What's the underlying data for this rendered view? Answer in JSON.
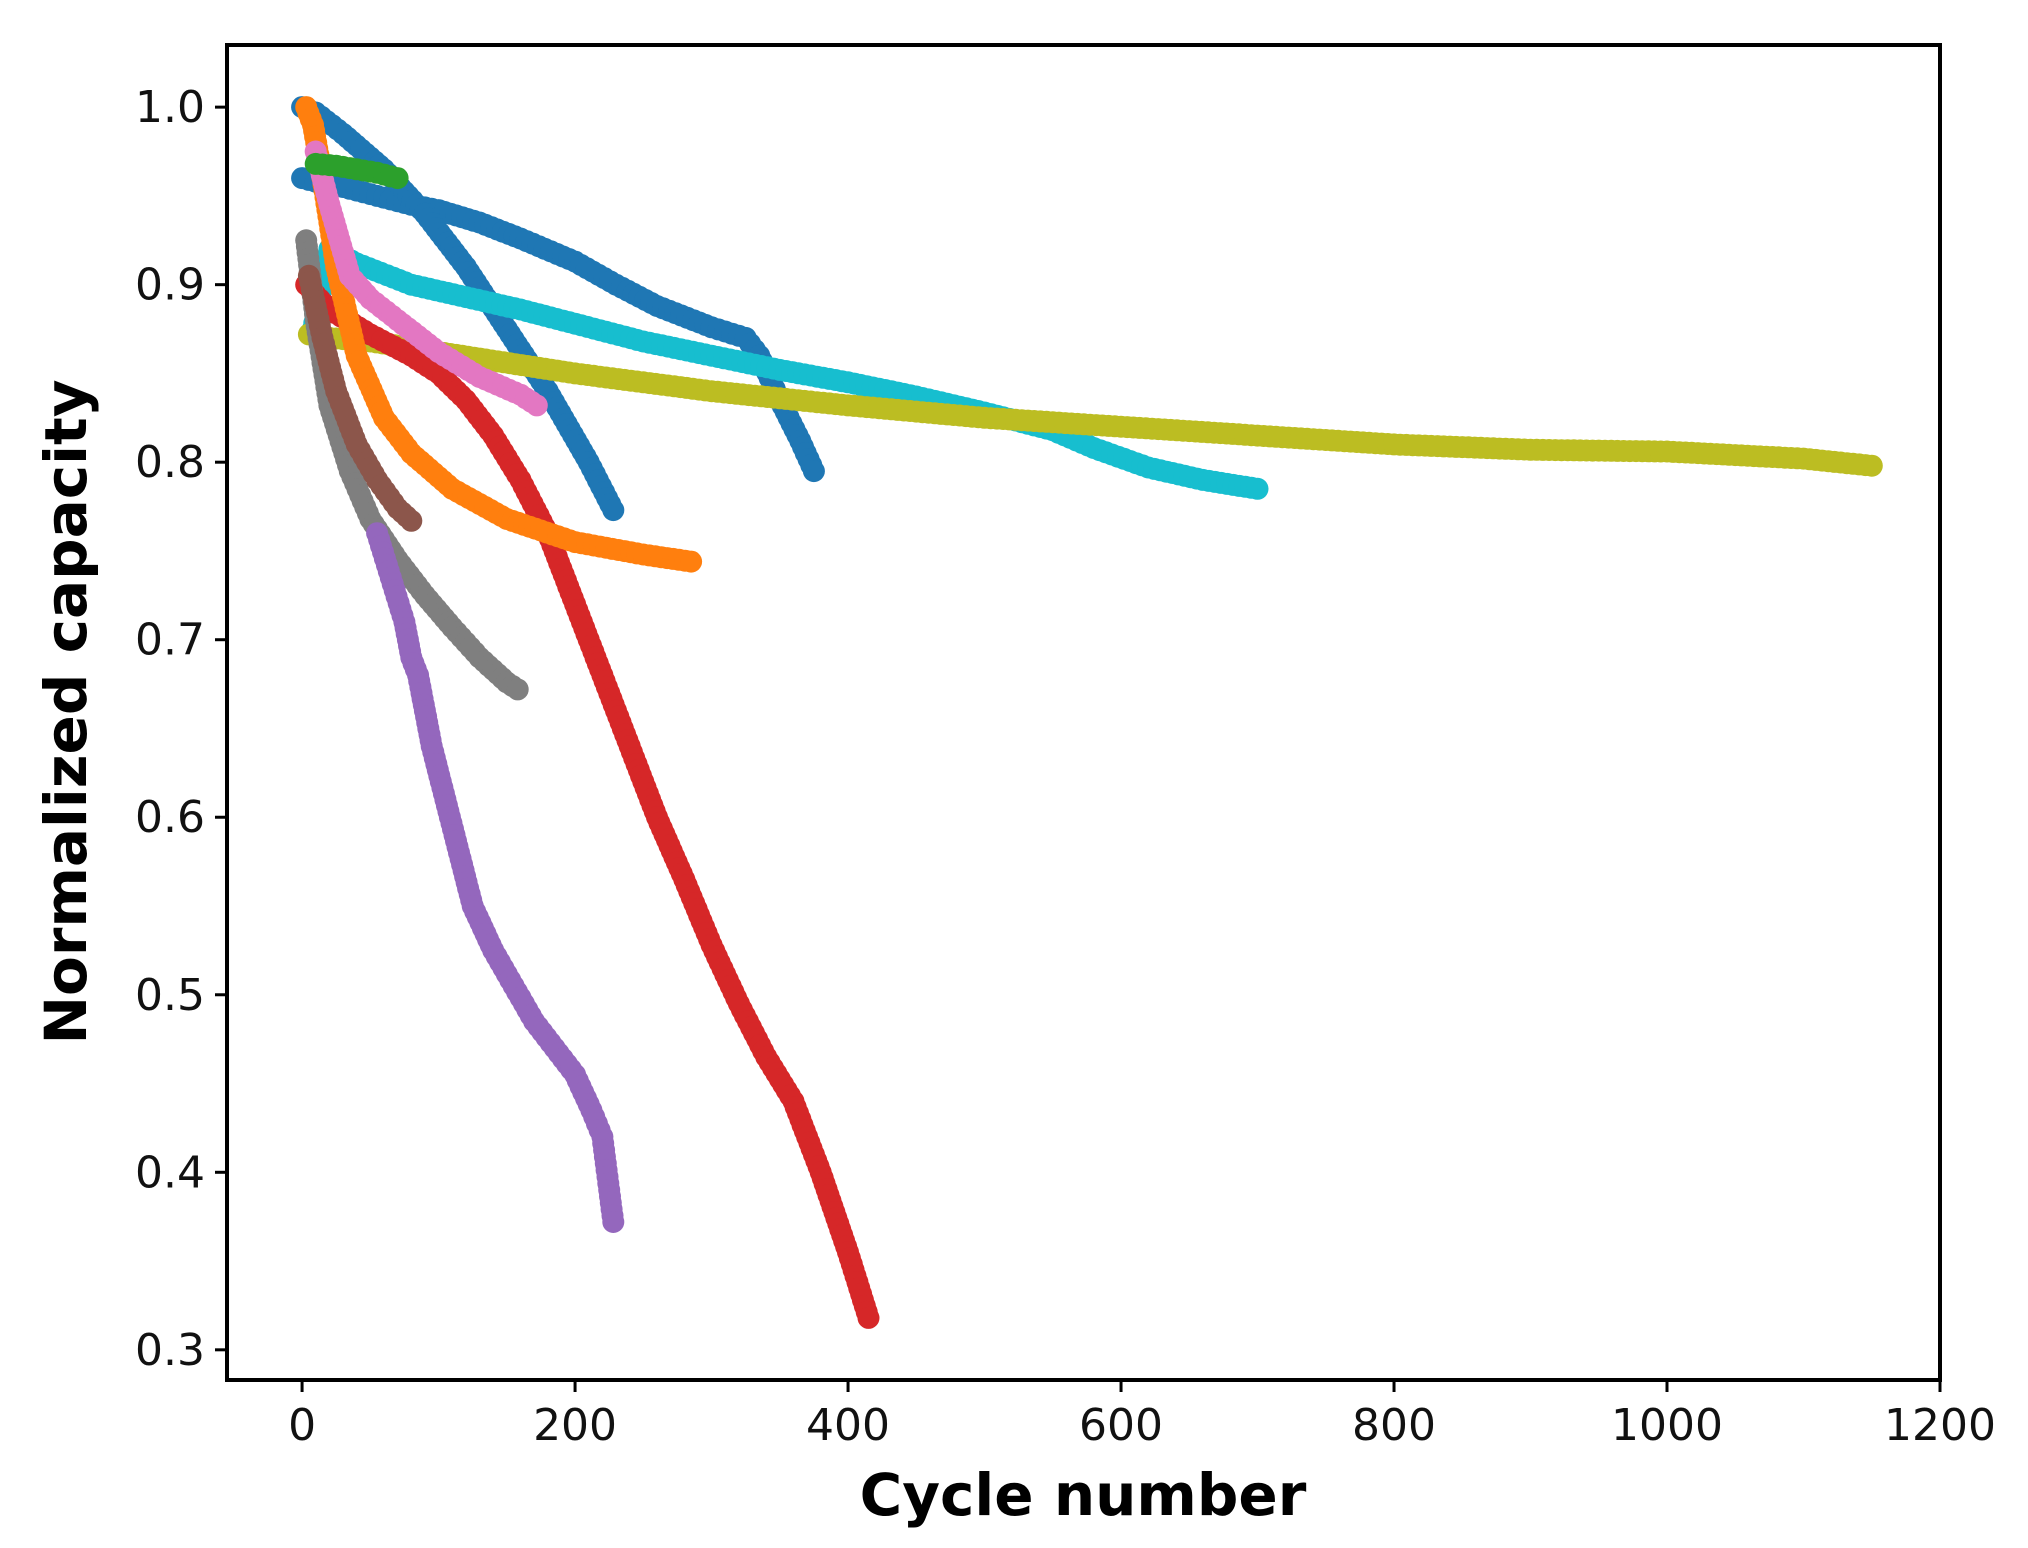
{
  "chart_data": {
    "type": "scatter",
    "title": "",
    "xlabel": "Cycle number",
    "ylabel": "Normalized capacity",
    "xlim": [
      -55,
      1200
    ],
    "ylim": [
      0.283,
      1.035
    ],
    "xticks": [
      0,
      200,
      400,
      600,
      800,
      1000,
      1200
    ],
    "yticks": [
      0.3,
      0.4,
      0.5,
      0.6,
      0.7,
      0.8,
      0.9,
      1.0
    ],
    "xtick_labels": [
      "0",
      "200",
      "400",
      "600",
      "800",
      "1000",
      "1200"
    ],
    "ytick_labels": [
      "0.3",
      "0.4",
      "0.5",
      "0.6",
      "0.7",
      "0.8",
      "0.9",
      "1.0"
    ],
    "grid": false,
    "legend": "none",
    "series": [
      {
        "name": "blue-a",
        "color": "#1f77b4",
        "x": [
          0,
          10,
          20,
          40,
          60,
          80,
          100,
          130,
          160,
          200,
          230,
          260,
          300,
          325,
          335,
          350,
          365,
          375
        ],
        "y": [
          0.96,
          0.958,
          0.957,
          0.953,
          0.949,
          0.945,
          0.942,
          0.935,
          0.926,
          0.913,
          0.9,
          0.888,
          0.876,
          0.87,
          0.86,
          0.835,
          0.812,
          0.795
        ]
      },
      {
        "name": "blue-b",
        "color": "#1f77b4",
        "x": [
          0,
          10,
          30,
          60,
          90,
          120,
          150,
          180,
          210,
          228
        ],
        "y": [
          1.0,
          0.997,
          0.985,
          0.965,
          0.94,
          0.91,
          0.875,
          0.84,
          0.8,
          0.773
        ]
      },
      {
        "name": "cyan",
        "color": "#17becf",
        "x": [
          8,
          20,
          40,
          80,
          120,
          160,
          200,
          250,
          300,
          350,
          400,
          450,
          500,
          550,
          580,
          620,
          660,
          700
        ],
        "y": [
          0.875,
          0.92,
          0.912,
          0.9,
          0.893,
          0.886,
          0.878,
          0.868,
          0.86,
          0.852,
          0.845,
          0.837,
          0.828,
          0.818,
          0.808,
          0.797,
          0.79,
          0.785
        ]
      },
      {
        "name": "olive",
        "color": "#bcbd22",
        "x": [
          5,
          20,
          50,
          100,
          200,
          300,
          400,
          500,
          600,
          700,
          800,
          900,
          1000,
          1100,
          1150
        ],
        "y": [
          0.872,
          0.87,
          0.868,
          0.862,
          0.85,
          0.84,
          0.832,
          0.825,
          0.82,
          0.815,
          0.81,
          0.807,
          0.806,
          0.802,
          0.798
        ]
      },
      {
        "name": "red",
        "color": "#d62728",
        "x": [
          3,
          20,
          50,
          80,
          100,
          120,
          140,
          160,
          180,
          200,
          220,
          240,
          260,
          280,
          300,
          320,
          340,
          360,
          380,
          400,
          415
        ],
        "y": [
          0.9,
          0.886,
          0.872,
          0.86,
          0.85,
          0.835,
          0.815,
          0.79,
          0.76,
          0.72,
          0.68,
          0.64,
          0.6,
          0.565,
          0.528,
          0.495,
          0.465,
          0.44,
          0.4,
          0.355,
          0.318
        ]
      },
      {
        "name": "orange",
        "color": "#ff7f0e",
        "x": [
          3,
          8,
          15,
          25,
          40,
          60,
          80,
          110,
          150,
          200,
          250,
          285
        ],
        "y": [
          1.0,
          0.99,
          0.96,
          0.91,
          0.86,
          0.825,
          0.805,
          0.785,
          0.768,
          0.755,
          0.748,
          0.744
        ]
      },
      {
        "name": "pink",
        "color": "#e377c2",
        "x": [
          10,
          20,
          35,
          50,
          70,
          100,
          130,
          160,
          172
        ],
        "y": [
          0.975,
          0.945,
          0.905,
          0.892,
          0.88,
          0.862,
          0.848,
          0.838,
          0.832
        ]
      },
      {
        "name": "green",
        "color": "#2ca02c",
        "x": [
          10,
          25,
          40,
          55,
          70
        ],
        "y": [
          0.968,
          0.967,
          0.965,
          0.963,
          0.96
        ]
      },
      {
        "name": "gray",
        "color": "#7f7f7f",
        "x": [
          3,
          10,
          20,
          35,
          50,
          70,
          90,
          110,
          130,
          150,
          158
        ],
        "y": [
          0.925,
          0.88,
          0.832,
          0.795,
          0.768,
          0.745,
          0.725,
          0.707,
          0.69,
          0.676,
          0.672
        ]
      },
      {
        "name": "brown",
        "color": "#8c564b",
        "x": [
          5,
          15,
          25,
          40,
          55,
          70,
          80
        ],
        "y": [
          0.905,
          0.87,
          0.84,
          0.81,
          0.79,
          0.774,
          0.767
        ]
      },
      {
        "name": "purple",
        "color": "#9467bd",
        "x": [
          55,
          65,
          75,
          80,
          85,
          95,
          105,
          115,
          125,
          140,
          155,
          170,
          185,
          200,
          212,
          220,
          225,
          228
        ],
        "y": [
          0.76,
          0.735,
          0.71,
          0.69,
          0.68,
          0.64,
          0.61,
          0.58,
          0.55,
          0.525,
          0.505,
          0.485,
          0.47,
          0.455,
          0.435,
          0.42,
          0.39,
          0.372
        ]
      }
    ]
  }
}
